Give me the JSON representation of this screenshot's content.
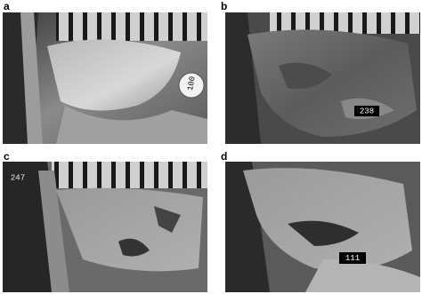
{
  "panels": [
    {
      "label": "a",
      "tag": "100"
    },
    {
      "label": "b",
      "tag": "238"
    },
    {
      "label": "c",
      "tag": "247"
    },
    {
      "label": "d",
      "tag": "111"
    }
  ]
}
